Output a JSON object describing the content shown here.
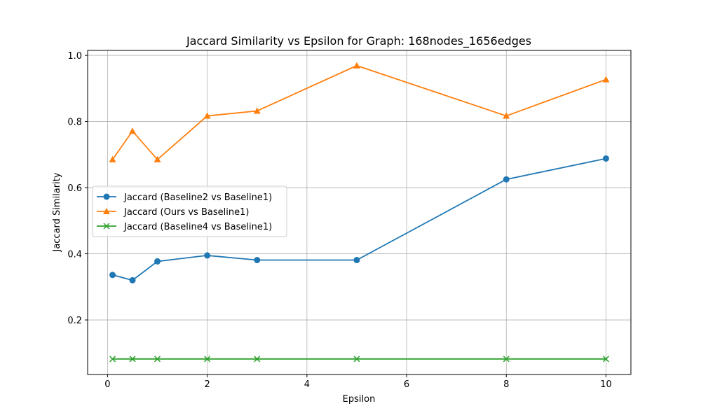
{
  "chart_data": {
    "type": "line",
    "title": "Jaccard Similarity vs Epsilon for Graph: 168nodes_1656edges",
    "xlabel": "Epsilon",
    "ylabel": "Jaccard Similarity",
    "xlim": [
      -0.4,
      10.5
    ],
    "ylim": [
      0.035,
      1.015
    ],
    "xticks": [
      0,
      2,
      4,
      6,
      8,
      10
    ],
    "xtick_labels": [
      "0",
      "2",
      "4",
      "6",
      "8",
      "10"
    ],
    "yticks": [
      0.2,
      0.4,
      0.6,
      0.8,
      1.0
    ],
    "ytick_labels": [
      "0.2",
      "0.4",
      "0.6",
      "0.8",
      "1.0"
    ],
    "grid": true,
    "legend_position": "center-left",
    "x": [
      0.1,
      0.5,
      1,
      2,
      3,
      5,
      8,
      10
    ],
    "series": [
      {
        "name": "Jaccard (Baseline2 vs Baseline1)",
        "color": "#1f77b4",
        "marker": "circle",
        "values": [
          0.336,
          0.32,
          0.377,
          0.395,
          0.381,
          0.381,
          0.625,
          0.688
        ]
      },
      {
        "name": "Jaccard (Ours vs Baseline1)",
        "color": "#ff7f0e",
        "marker": "triangle",
        "values": [
          0.685,
          0.771,
          0.685,
          0.817,
          0.832,
          0.969,
          0.817,
          0.927
        ]
      },
      {
        "name": "Jaccard (Baseline4 vs Baseline1)",
        "color": "#2ca02c",
        "marker": "x",
        "values": [
          0.082,
          0.082,
          0.082,
          0.082,
          0.082,
          0.082,
          0.082,
          0.082
        ]
      }
    ]
  }
}
